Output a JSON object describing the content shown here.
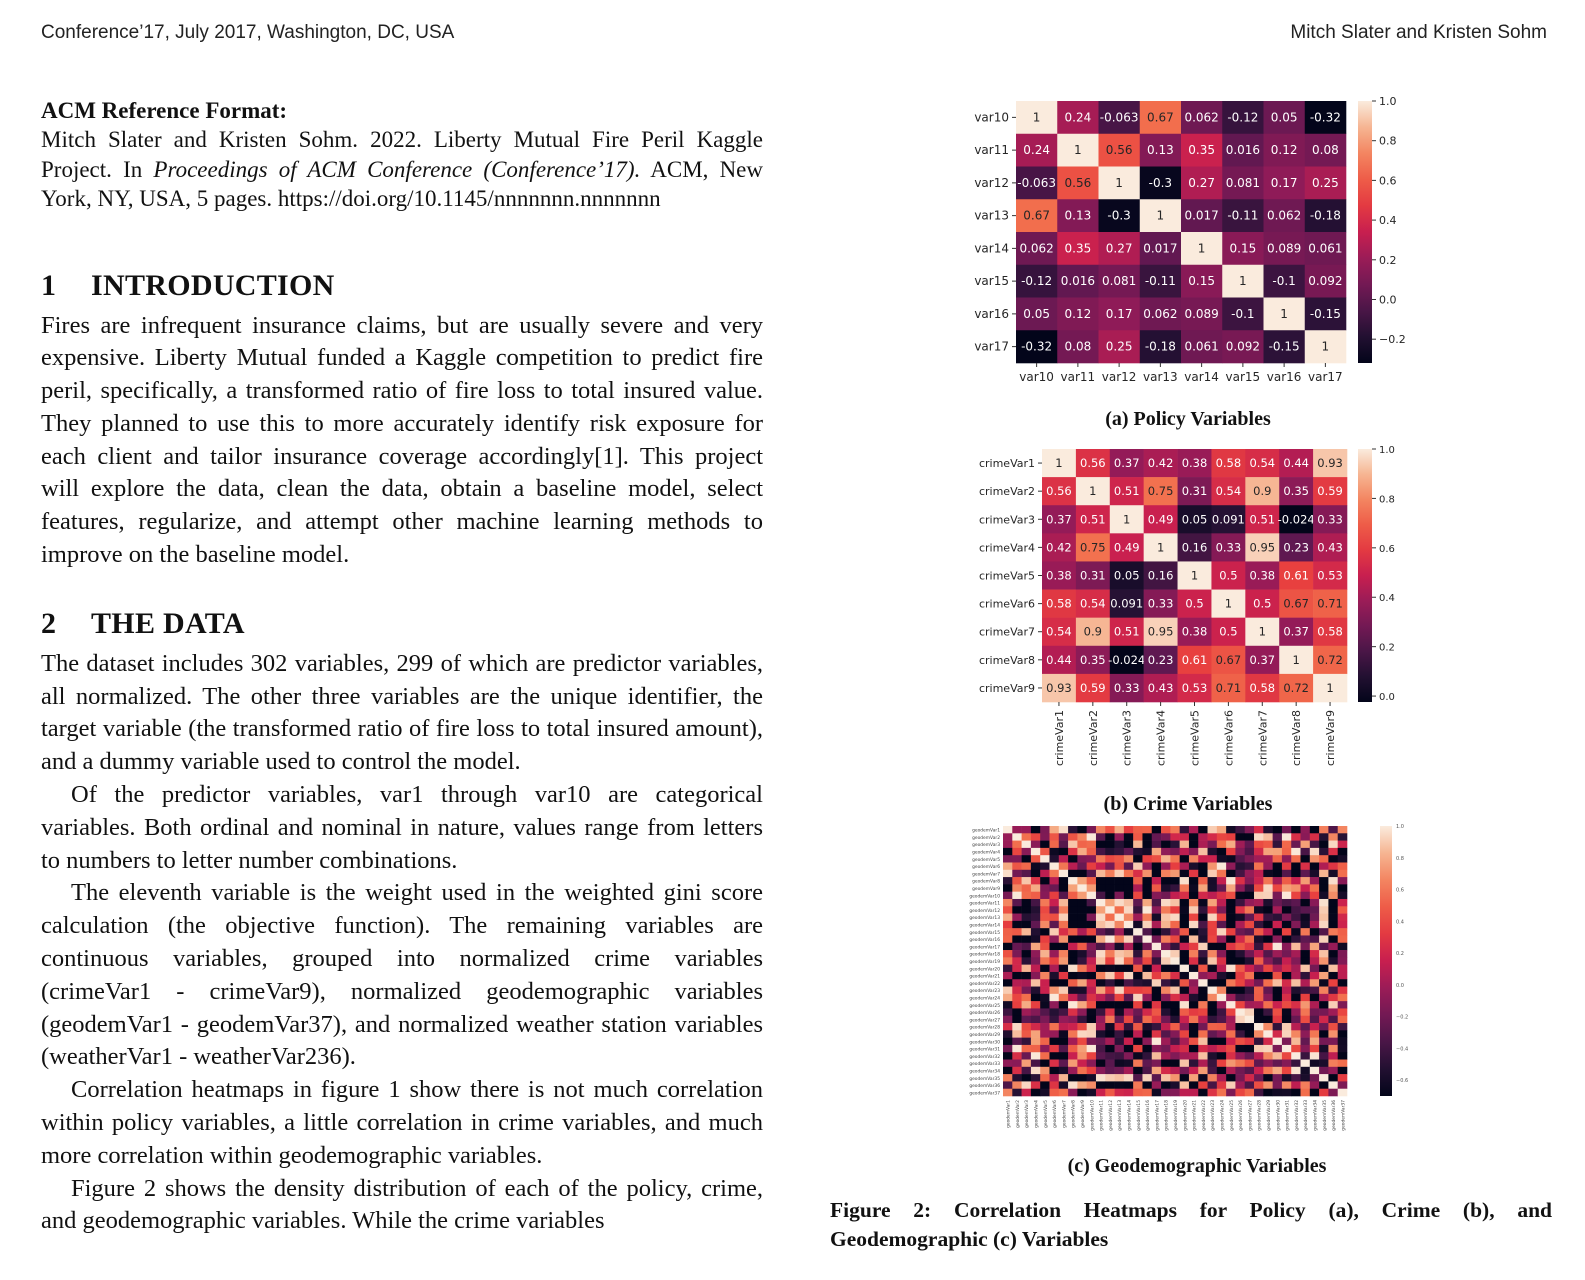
{
  "header": {
    "left": "Conference’17, July 2017, Washington, DC, USA",
    "right": "Mitch Slater and Kristen Sohm"
  },
  "reference": {
    "heading": "ACM Reference Format:",
    "pre": "Mitch Slater and Kristen Sohm. 2022. Liberty Mutual Fire Peril Kaggle Project. In ",
    "italic": "Proceedings of ACM Conference (Conference’17).",
    "post": " ACM, New York, NY, USA, 5 pages. https://doi.org/10.1145/nnnnnnn.nnnnnnn"
  },
  "sections": [
    {
      "num": "1",
      "title": "INTRODUCTION",
      "paragraphs": [
        "Fires are infrequent insurance claims, but are usually severe and very expensive. Liberty Mutual funded a Kaggle competition to predict fire peril, specifically, a transformed ratio of fire loss to total insured value. They planned to use this to more accurately identify risk exposure for each client and tailor insurance coverage accordingly[1]. This project will explore the data, clean the data, obtain a baseline model, select features, regularize, and attempt other machine learning methods to improve on the baseline model."
      ]
    },
    {
      "num": "2",
      "title": "THE DATA",
      "paragraphs": [
        "The dataset includes 302 variables, 299 of which are predictor variables, all normalized. The other three variables are the unique identifier, the target variable (the transformed ratio of fire loss to total insured amount), and a dummy variable used to control the model.",
        "Of the predictor variables, var1 through var10 are categorical variables. Both ordinal and nominal in nature, values range from letters to numbers to letter number combinations.",
        "The eleventh variable is the weight used in the weighted gini score calculation (the objective function). The remaining variables are continuous variables, grouped into normalized crime variables (crimeVar1 - crimeVar9), normalized geodemographic variables (geodemVar1 - geodemVar37), and normalized weather station variables (weatherVar1 - weatherVar236).",
        "Correlation heatmaps in figure 1 show there is not much correlation within policy variables, a little correlation in crime variables, and much more correlation within geodemographic variables.",
        "Figure 2 shows the density distribution of each of the policy, crime, and geodemographic variables. While the crime variables"
      ]
    }
  ],
  "figure": {
    "caption": "Figure 2: Correlation Heatmaps for Policy (a), Crime (b), and Geodemographic (c) Variables",
    "policy": {
      "subcaption": "(a) Policy Variables",
      "labels": [
        "var10",
        "var11",
        "var12",
        "var13",
        "var14",
        "var15",
        "var16",
        "var17"
      ],
      "values": [
        [
          1,
          0.24,
          -0.063,
          0.67,
          0.062,
          -0.12,
          0.05,
          -0.32
        ],
        [
          0.24,
          1,
          0.56,
          0.13,
          0.35,
          0.016,
          0.12,
          0.08
        ],
        [
          -0.063,
          0.56,
          1,
          -0.3,
          0.27,
          0.081,
          0.17,
          0.25
        ],
        [
          0.67,
          0.13,
          -0.3,
          1,
          0.017,
          -0.11,
          0.062,
          -0.18
        ],
        [
          0.062,
          0.35,
          0.27,
          0.017,
          1,
          0.15,
          0.089,
          0.061
        ],
        [
          -0.12,
          0.016,
          0.081,
          -0.11,
          0.15,
          1,
          -0.1,
          0.092
        ],
        [
          0.05,
          0.12,
          0.17,
          0.062,
          0.089,
          -0.1,
          1,
          -0.15
        ],
        [
          -0.32,
          0.08,
          0.25,
          -0.18,
          0.061,
          0.092,
          -0.15,
          1
        ]
      ],
      "vmin": -0.32,
      "vmax": 1.0,
      "cbar_ticks": [
        "1.0",
        "0.8",
        "0.6",
        "0.4",
        "0.2",
        "0.0",
        "−0.2"
      ]
    },
    "crime": {
      "subcaption": "(b) Crime Variables",
      "labels": [
        "crimeVar1",
        "crimeVar2",
        "crimeVar3",
        "crimeVar4",
        "crimeVar5",
        "crimeVar6",
        "crimeVar7",
        "crimeVar8",
        "crimeVar9"
      ],
      "values": [
        [
          1,
          0.56,
          0.37,
          0.42,
          0.38,
          0.58,
          0.54,
          0.44,
          0.93
        ],
        [
          0.56,
          1,
          0.51,
          0.75,
          0.31,
          0.54,
          0.9,
          0.35,
          0.59
        ],
        [
          0.37,
          0.51,
          1,
          0.49,
          0.05,
          0.091,
          0.51,
          -0.024,
          0.33
        ],
        [
          0.42,
          0.75,
          0.49,
          1,
          0.16,
          0.33,
          0.95,
          0.23,
          0.43
        ],
        [
          0.38,
          0.31,
          0.05,
          0.16,
          1,
          0.5,
          0.38,
          0.61,
          0.53
        ],
        [
          0.58,
          0.54,
          0.091,
          0.33,
          0.5,
          1,
          0.5,
          0.67,
          0.71
        ],
        [
          0.54,
          0.9,
          0.51,
          0.95,
          0.38,
          0.5,
          1,
          0.37,
          0.58
        ],
        [
          0.44,
          0.35,
          -0.024,
          0.23,
          0.61,
          0.67,
          0.37,
          1,
          0.72
        ],
        [
          0.93,
          0.59,
          0.33,
          0.43,
          0.53,
          0.71,
          0.58,
          0.72,
          1
        ]
      ],
      "vmin": -0.024,
      "vmax": 1.0,
      "cbar_ticks": [
        "1.0",
        "0.8",
        "0.6",
        "0.4",
        "0.2",
        "0.0"
      ]
    },
    "geodem": {
      "subcaption": "(c) Geodemographic Variables",
      "labels": [
        "geodemVar1",
        "geodemVar2",
        "geodemVar3",
        "geodemVar4",
        "geodemVar5",
        "geodemVar6",
        "geodemVar7",
        "geodemVar8",
        "geodemVar9",
        "geodemVar10",
        "geodemVar11",
        "geodemVar12",
        "geodemVar13",
        "geodemVar14",
        "geodemVar15",
        "geodemVar16",
        "geodemVar17",
        "geodemVar18",
        "geodemVar19",
        "geodemVar20",
        "geodemVar21",
        "geodemVar22",
        "geodemVar23",
        "geodemVar24",
        "geodemVar25",
        "geodemVar26",
        "geodemVar27",
        "geodemVar28",
        "geodemVar29",
        "geodemVar30",
        "geodemVar31",
        "geodemVar32",
        "geodemVar33",
        "geodemVar34",
        "geodemVar35",
        "geodemVar36",
        "geodemVar37"
      ],
      "cbar_ticks": [
        "1.0",
        "0.8",
        "0.6",
        "0.4",
        "0.2",
        "0.0",
        "−0.2",
        "−0.4",
        "−0.6"
      ]
    }
  },
  "chart_data": [
    {
      "type": "heatmap",
      "title": "(a) Policy Variables",
      "x": [
        "var10",
        "var11",
        "var12",
        "var13",
        "var14",
        "var15",
        "var16",
        "var17"
      ],
      "y": [
        "var10",
        "var11",
        "var12",
        "var13",
        "var14",
        "var15",
        "var16",
        "var17"
      ],
      "colorbar_range": [
        -0.32,
        1.0
      ]
    },
    {
      "type": "heatmap",
      "title": "(b) Crime Variables",
      "x": [
        "crimeVar1",
        "crimeVar2",
        "crimeVar3",
        "crimeVar4",
        "crimeVar5",
        "crimeVar6",
        "crimeVar7",
        "crimeVar8",
        "crimeVar9"
      ],
      "y": [
        "crimeVar1",
        "crimeVar2",
        "crimeVar3",
        "crimeVar4",
        "crimeVar5",
        "crimeVar6",
        "crimeVar7",
        "crimeVar8",
        "crimeVar9"
      ],
      "colorbar_range": [
        -0.024,
        1.0
      ]
    },
    {
      "type": "heatmap",
      "title": "(c) Geodemographic Variables",
      "x": "geodemVar1 - geodemVar37",
      "y": "geodemVar1 - geodemVar37",
      "colorbar_range": [
        -0.7,
        1.0
      ]
    }
  ]
}
